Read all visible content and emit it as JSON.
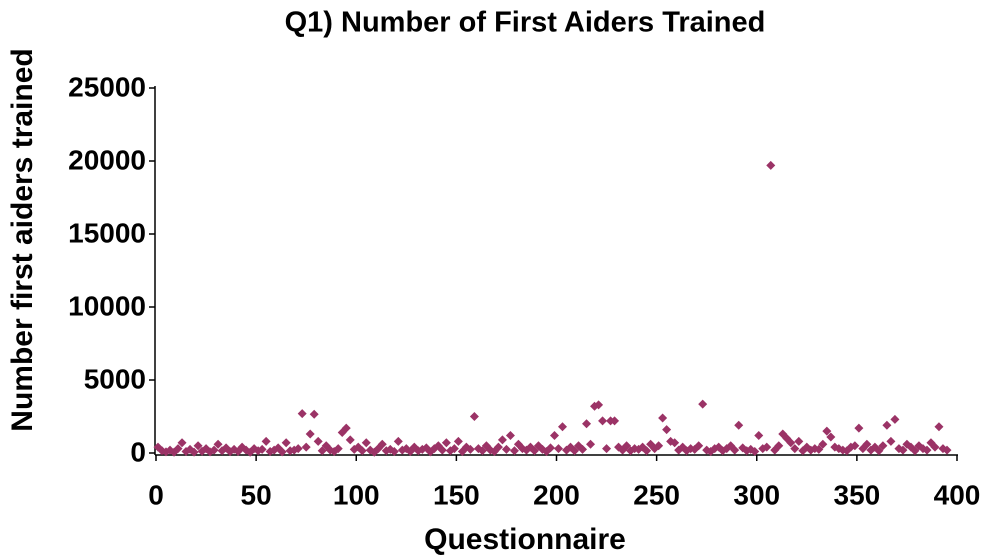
{
  "chart_data": {
    "type": "scatter",
    "title": "Q1) Number of First Aiders Trained",
    "xlabel": "Questionnaire",
    "ylabel": "Number first aiders trained",
    "color": "#9b3366",
    "xlim": [
      0,
      400
    ],
    "xticks": [
      0,
      50,
      100,
      150,
      200,
      250,
      300,
      350,
      400
    ],
    "ylim": [
      0,
      25000
    ],
    "yticks": [
      0,
      5000,
      10000,
      15000,
      20000,
      25000
    ],
    "grid": false,
    "x": [
      1,
      3,
      5,
      7,
      9,
      11,
      13,
      15,
      17,
      19,
      21,
      23,
      25,
      27,
      29,
      31,
      33,
      35,
      37,
      39,
      41,
      43,
      45,
      47,
      49,
      51,
      53,
      55,
      57,
      59,
      61,
      63,
      65,
      67,
      69,
      71,
      73,
      75,
      77,
      79,
      81,
      83,
      85,
      87,
      89,
      91,
      93,
      95,
      97,
      99,
      101,
      103,
      105,
      107,
      109,
      111,
      113,
      115,
      117,
      119,
      121,
      123,
      125,
      127,
      129,
      131,
      133,
      135,
      137,
      139,
      141,
      143,
      145,
      147,
      149,
      151,
      153,
      155,
      157,
      159,
      161,
      163,
      165,
      167,
      169,
      171,
      173,
      175,
      177,
      179,
      181,
      183,
      185,
      187,
      189,
      191,
      193,
      195,
      197,
      199,
      201,
      203,
      205,
      207,
      209,
      211,
      213,
      215,
      217,
      219,
      221,
      223,
      225,
      227,
      229,
      231,
      233,
      235,
      237,
      239,
      241,
      243,
      245,
      247,
      249,
      251,
      253,
      255,
      257,
      259,
      261,
      263,
      265,
      267,
      269,
      271,
      273,
      275,
      277,
      279,
      281,
      283,
      285,
      287,
      289,
      291,
      293,
      295,
      297,
      299,
      301,
      303,
      305,
      307,
      309,
      311,
      313,
      315,
      317,
      319,
      321,
      323,
      325,
      327,
      329,
      331,
      333,
      335,
      337,
      339,
      341,
      343,
      345,
      347,
      349,
      351,
      353,
      355,
      357,
      359,
      361,
      363,
      365,
      367,
      369,
      371,
      373,
      375,
      377,
      379,
      381,
      383,
      385,
      387,
      389,
      391,
      393,
      395
    ],
    "values": [
      400,
      150,
      80,
      200,
      50,
      300,
      700,
      100,
      250,
      60,
      500,
      120,
      300,
      80,
      200,
      600,
      150,
      350,
      90,
      250,
      100,
      400,
      200,
      50,
      300,
      150,
      250,
      800,
      100,
      200,
      350,
      80,
      700,
      150,
      200,
      300,
      2700,
      400,
      1300,
      2650,
      800,
      150,
      500,
      200,
      100,
      300,
      1400,
      1700,
      900,
      250,
      400,
      150,
      700,
      200,
      50,
      300,
      600,
      150,
      250,
      100,
      800,
      200,
      300,
      100,
      400,
      150,
      250,
      350,
      80,
      300,
      500,
      200,
      700,
      150,
      300,
      800,
      100,
      400,
      250,
      2500,
      300,
      150,
      500,
      200,
      100,
      400,
      900,
      250,
      1200,
      150,
      600,
      300,
      200,
      400,
      150,
      500,
      250,
      100,
      350,
      1200,
      300,
      1800,
      200,
      400,
      150,
      500,
      250,
      2000,
      600,
      3200,
      3300,
      2200,
      300,
      2200,
      2200,
      400,
      200,
      500,
      150,
      300,
      250,
      400,
      150,
      600,
      300,
      500,
      2400,
      1600,
      800,
      700,
      200,
      400,
      150,
      300,
      250,
      500,
      3350,
      200,
      100,
      300,
      400,
      150,
      300,
      500,
      200,
      1900,
      350,
      150,
      250,
      100,
      1200,
      300,
      400,
      19700,
      200,
      500,
      1300,
      1000,
      700,
      300,
      800,
      150,
      400,
      200,
      300,
      250,
      600,
      1500,
      1100,
      400,
      300,
      200,
      150,
      400,
      500,
      1700,
      300,
      600,
      200,
      400,
      150,
      500,
      1900,
      800,
      2300,
      300,
      200,
      600,
      400,
      150,
      500,
      300,
      200,
      700,
      400,
      1800,
      300,
      200
    ]
  }
}
